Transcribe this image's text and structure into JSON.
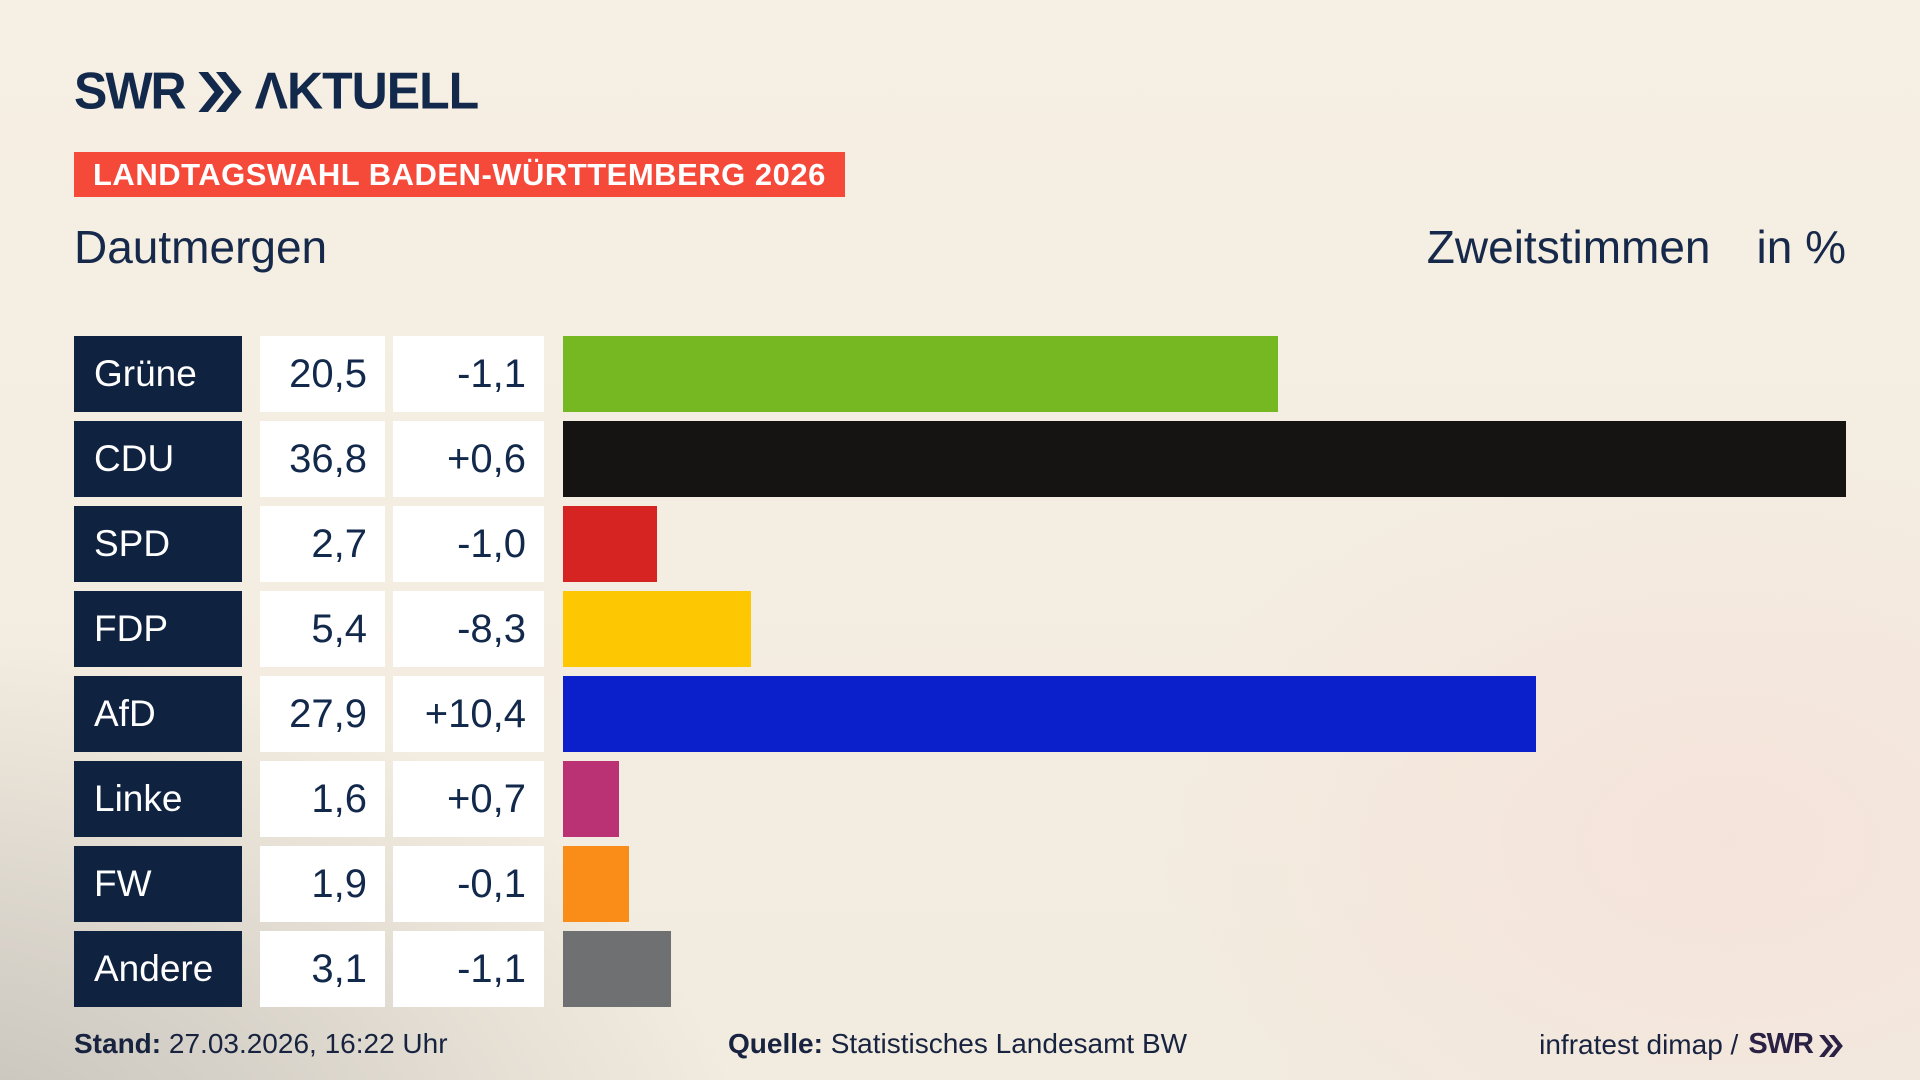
{
  "brand": {
    "name": "SWR",
    "suffix": "ΛKTUELL"
  },
  "banner": {
    "label": "LANDTAGSWAHL BADEN-WÜRTTEMBERG 2026",
    "bg": "#f5493a"
  },
  "header": {
    "municipality": "Dautmergen",
    "measure": "Zweitstimmen",
    "unit": "in %"
  },
  "chart_data": {
    "type": "bar",
    "orientation": "horizontal",
    "title": "Dautmergen — Zweitstimmen in %",
    "categories": [
      "Grüne",
      "CDU",
      "SPD",
      "FDP",
      "AfD",
      "Linke",
      "FW",
      "Andere"
    ],
    "values": [
      20.5,
      36.8,
      2.7,
      5.4,
      27.9,
      1.6,
      1.9,
      3.1
    ],
    "value_labels": [
      "20,5",
      "36,8",
      "2,7",
      "5,4",
      "27,9",
      "1,6",
      "1,9",
      "3,1"
    ],
    "changes": [
      -1.1,
      0.6,
      -1.0,
      -8.3,
      10.4,
      0.7,
      -0.1,
      -1.1
    ],
    "change_labels": [
      "-1,1",
      "+0,6",
      "-1,0",
      "-8,3",
      "+10,4",
      "+0,7",
      "-0,1",
      "-1,1"
    ],
    "bar_colors": [
      "#76b822",
      "#151412",
      "#d52421",
      "#fdc802",
      "#0b1fcb",
      "#bb3274",
      "#f98d18",
      "#6e7072"
    ],
    "xlim": [
      0,
      36.8
    ],
    "grid": false,
    "legend": false
  },
  "footer": {
    "stand_label": "Stand:",
    "stand_value": "27.03.2026, 16:22 Uhr",
    "quelle_label": "Quelle:",
    "quelle_value": "Statistisches Landesamt BW",
    "credit_text": "infratest dimap /",
    "credit_brand": "SWR"
  },
  "colors": {
    "accent_red": "#f5493a",
    "navy_box": "#0f2240",
    "navy_text": "#12294b",
    "footer_brand": "#2a2145"
  }
}
